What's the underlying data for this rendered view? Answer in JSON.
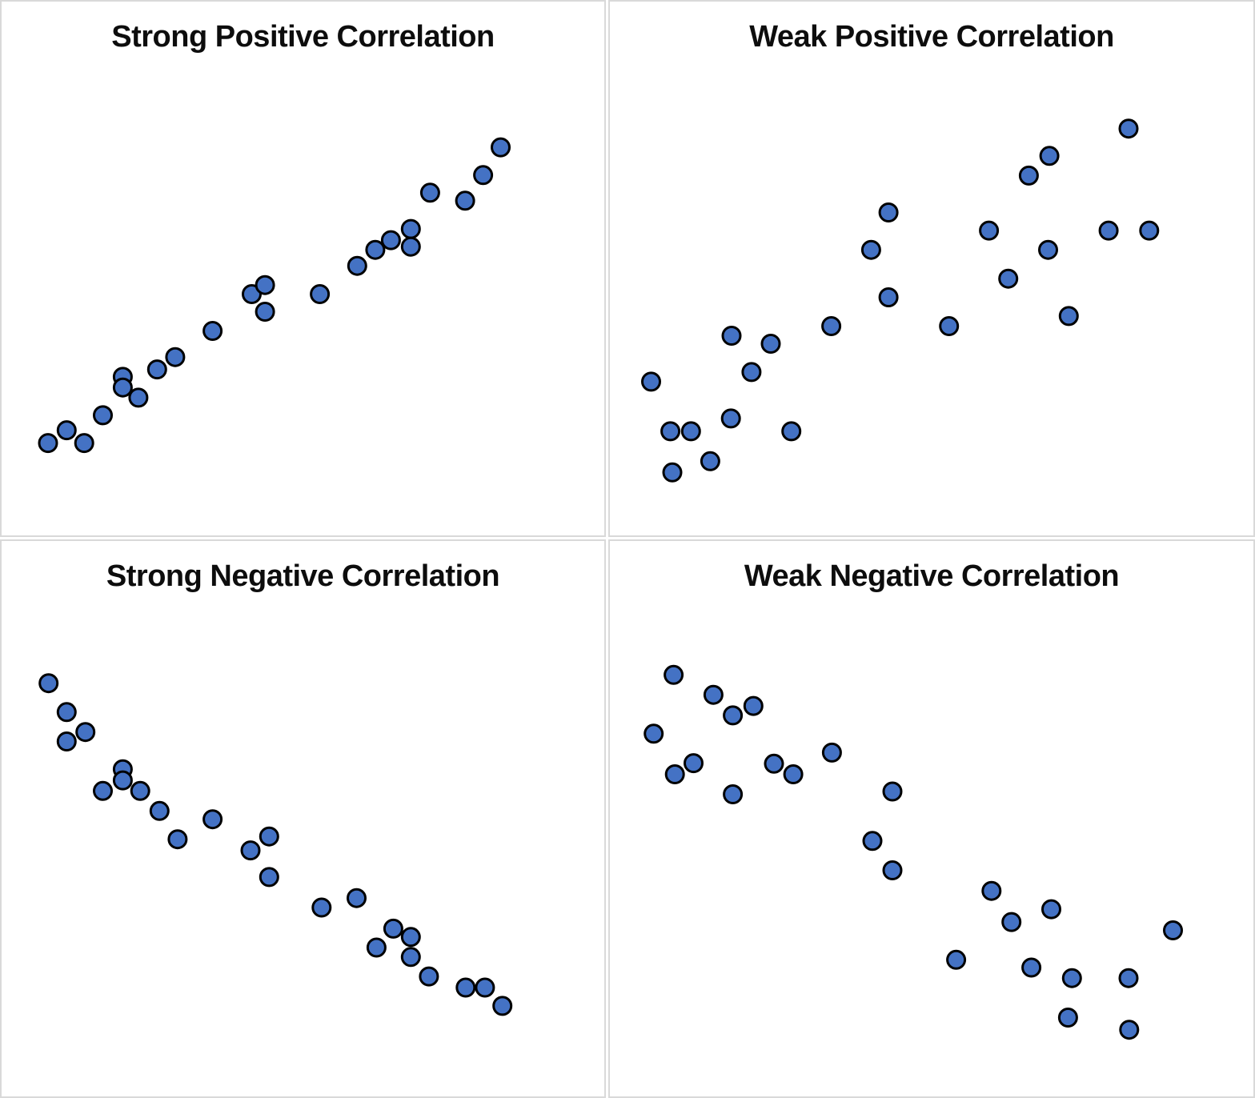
{
  "page": {
    "background_color": "#ffffff",
    "panel_border_color": "#d9d9d9"
  },
  "style": {
    "dot_fill": "#4472C4",
    "dot_stroke": "#000000",
    "dot_radius": 11,
    "dot_stroke_width": 3,
    "title_color": "#0d0d0d"
  },
  "chart_data": [
    {
      "type": "scatter",
      "title": "Strong Positive Correlation",
      "xlabel": "",
      "ylabel": "",
      "xlim": [
        0,
        100
      ],
      "ylim": [
        0,
        100
      ],
      "grid": false,
      "axes_visible": false,
      "legend": null,
      "points": [
        [
          7.7,
          17.3
        ],
        [
          10.8,
          19.7
        ],
        [
          13.7,
          17.3
        ],
        [
          16.8,
          22.5
        ],
        [
          20.1,
          29.7
        ],
        [
          20.1,
          27.7
        ],
        [
          22.7,
          25.8
        ],
        [
          25.8,
          31.1
        ],
        [
          28.8,
          33.4
        ],
        [
          35.0,
          38.3
        ],
        [
          41.5,
          45.2
        ],
        [
          43.7,
          46.9
        ],
        [
          43.7,
          41.9
        ],
        [
          52.8,
          45.2
        ],
        [
          59.0,
          50.5
        ],
        [
          62.0,
          53.5
        ],
        [
          64.6,
          55.3
        ],
        [
          67.9,
          57.4
        ],
        [
          67.9,
          54.1
        ],
        [
          71.1,
          64.2
        ],
        [
          76.9,
          62.7
        ],
        [
          79.9,
          67.5
        ],
        [
          82.8,
          72.7
        ]
      ]
    },
    {
      "type": "scatter",
      "title": "Weak Positive Correlation",
      "xlabel": "",
      "ylabel": "",
      "xlim": [
        0,
        100
      ],
      "ylim": [
        0,
        100
      ],
      "grid": false,
      "axes_visible": false,
      "legend": null,
      "points": [
        [
          6.4,
          28.8
        ],
        [
          9.4,
          19.5
        ],
        [
          12.6,
          19.5
        ],
        [
          9.7,
          11.8
        ],
        [
          15.6,
          13.9
        ],
        [
          18.8,
          21.9
        ],
        [
          18.9,
          37.4
        ],
        [
          22.0,
          30.6
        ],
        [
          25.0,
          35.9
        ],
        [
          28.2,
          19.5
        ],
        [
          34.4,
          39.2
        ],
        [
          40.6,
          53.5
        ],
        [
          43.3,
          44.6
        ],
        [
          43.3,
          60.5
        ],
        [
          52.7,
          39.2
        ],
        [
          58.9,
          57.1
        ],
        [
          61.9,
          48.1
        ],
        [
          65.1,
          67.4
        ],
        [
          68.3,
          71.1
        ],
        [
          68.1,
          53.5
        ],
        [
          71.3,
          41.1
        ],
        [
          77.5,
          57.1
        ],
        [
          80.6,
          76.2
        ],
        [
          83.8,
          57.1
        ]
      ]
    },
    {
      "type": "scatter",
      "title": "Strong Negative Correlation",
      "xlabel": "",
      "ylabel": "",
      "xlim": [
        0,
        100
      ],
      "ylim": [
        0,
        100
      ],
      "grid": false,
      "axes_visible": false,
      "legend": null,
      "points": [
        [
          7.8,
          74.4
        ],
        [
          10.8,
          69.2
        ],
        [
          13.9,
          65.6
        ],
        [
          10.8,
          63.9
        ],
        [
          20.1,
          58.9
        ],
        [
          20.1,
          56.9
        ],
        [
          16.8,
          55.0
        ],
        [
          23.0,
          55.0
        ],
        [
          26.2,
          51.4
        ],
        [
          35.0,
          49.9
        ],
        [
          29.2,
          46.3
        ],
        [
          41.3,
          44.3
        ],
        [
          44.4,
          46.8
        ],
        [
          44.4,
          39.5
        ],
        [
          53.1,
          34.0
        ],
        [
          58.9,
          35.7
        ],
        [
          65.0,
          30.2
        ],
        [
          67.9,
          28.7
        ],
        [
          62.2,
          26.8
        ],
        [
          67.9,
          25.1
        ],
        [
          70.9,
          21.6
        ],
        [
          77.0,
          19.6
        ],
        [
          80.2,
          19.6
        ],
        [
          83.1,
          16.3
        ]
      ]
    },
    {
      "type": "scatter",
      "title": "Weak Negative Correlation",
      "xlabel": "",
      "ylabel": "",
      "xlim": [
        0,
        100
      ],
      "ylim": [
        0,
        100
      ],
      "grid": false,
      "axes_visible": false,
      "legend": null,
      "points": [
        [
          9.9,
          75.9
        ],
        [
          16.1,
          72.3
        ],
        [
          22.3,
          70.3
        ],
        [
          19.1,
          68.6
        ],
        [
          6.8,
          65.3
        ],
        [
          13.0,
          60.0
        ],
        [
          10.1,
          58.0
        ],
        [
          25.5,
          59.9
        ],
        [
          28.5,
          58.0
        ],
        [
          34.5,
          61.9
        ],
        [
          19.1,
          54.4
        ],
        [
          43.9,
          54.9
        ],
        [
          40.8,
          46.0
        ],
        [
          43.9,
          40.7
        ],
        [
          59.3,
          37.0
        ],
        [
          68.6,
          33.7
        ],
        [
          62.4,
          31.4
        ],
        [
          87.5,
          29.9
        ],
        [
          53.8,
          24.6
        ],
        [
          65.5,
          23.2
        ],
        [
          71.8,
          21.3
        ],
        [
          80.6,
          21.3
        ],
        [
          71.2,
          14.2
        ],
        [
          80.7,
          12.0
        ]
      ]
    }
  ]
}
